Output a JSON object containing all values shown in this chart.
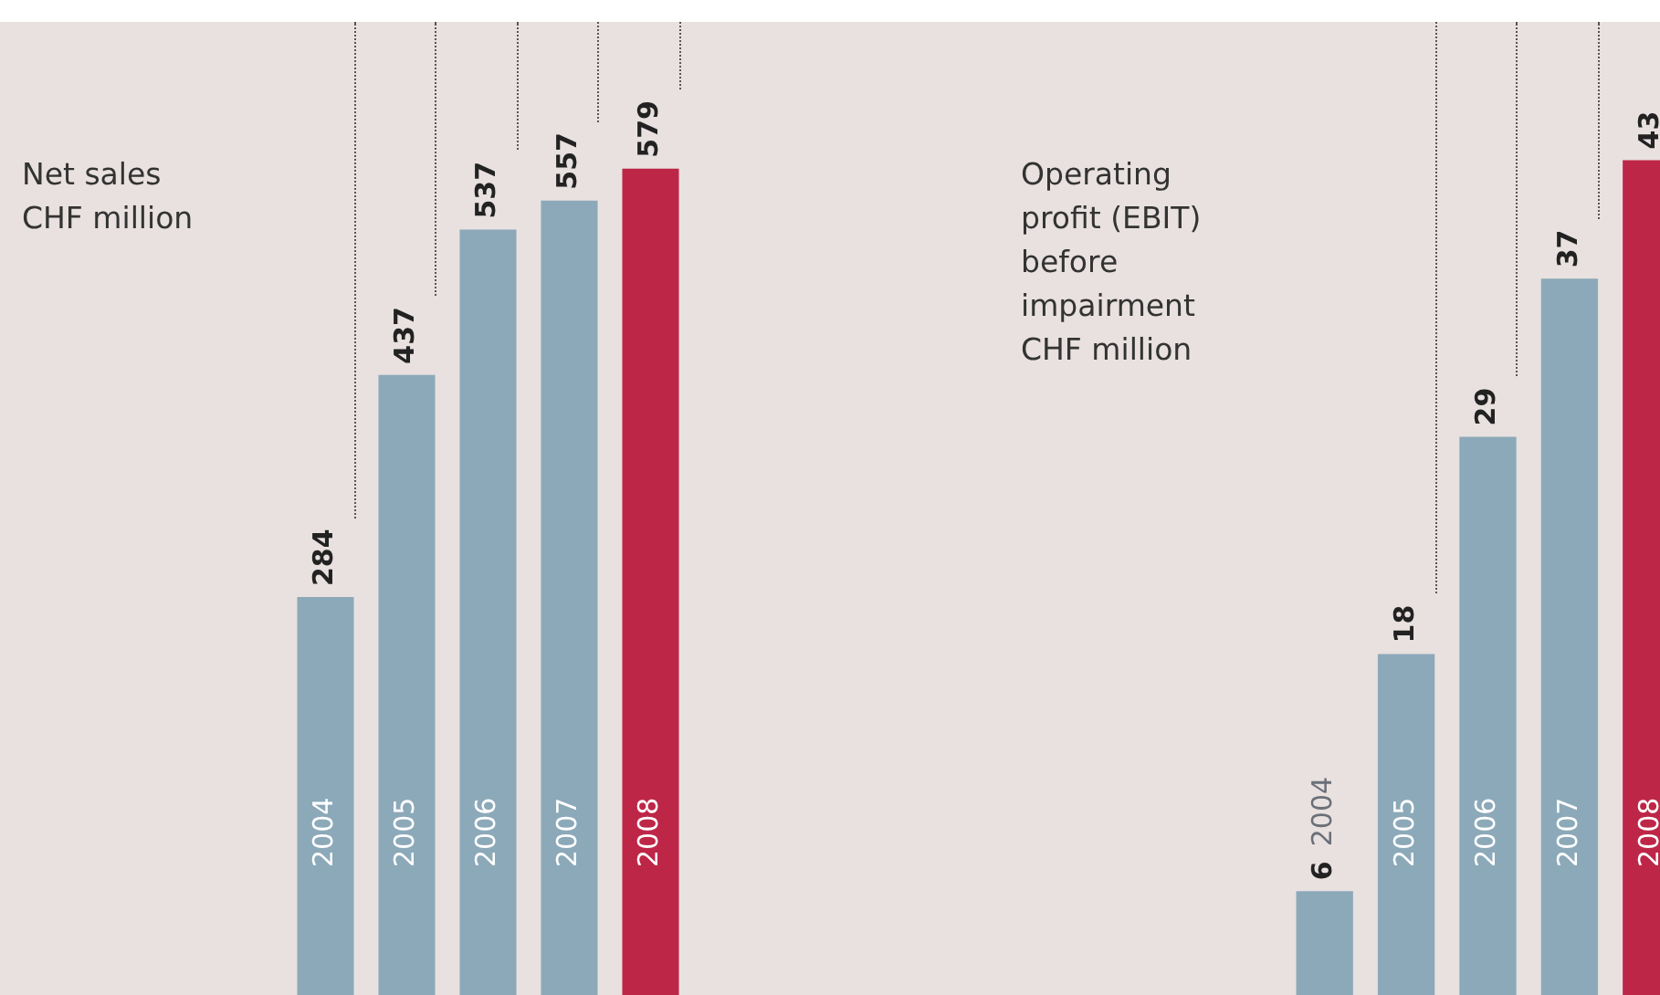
{
  "chart_data": [
    {
      "type": "bar",
      "title": "Net sales\nCHF million",
      "categories": [
        "2004",
        "2005",
        "2006",
        "2007",
        "2008"
      ],
      "values": [
        284,
        437,
        537,
        557,
        579
      ],
      "colors": [
        "#8ca9b9",
        "#8ca9b9",
        "#8ca9b9",
        "#8ca9b9",
        "#be2648"
      ],
      "ylim": [
        0,
        680
      ],
      "data_labels": true,
      "tick_labels": "x"
    },
    {
      "type": "bar",
      "title": "Operating\nprofit (EBIT)\nbefore\nimpairment\nCHF million",
      "categories": [
        "2004",
        "2005",
        "2006",
        "2007",
        "2008"
      ],
      "values": [
        6,
        18,
        29,
        37,
        43
      ],
      "colors": [
        "#8ca9b9",
        "#8ca9b9",
        "#8ca9b9",
        "#8ca9b9",
        "#be2648"
      ],
      "ylim": [
        0,
        50
      ],
      "data_labels": true,
      "tick_labels": "x"
    }
  ]
}
